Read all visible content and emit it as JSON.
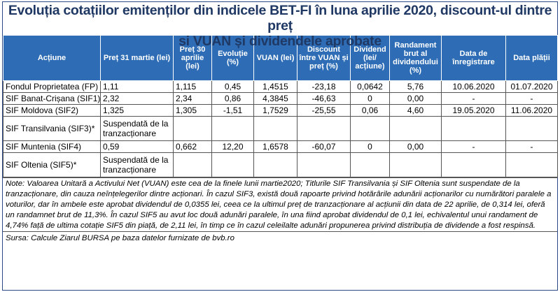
{
  "title_line1": "Evoluția cotațiilor emitenților din indicele BET-FI în luna aprilie 2020,  discount-ul dintre preț",
  "title_line2": "și VUAN și dividendele aprobate",
  "headers": [
    "Acțiune",
    "Preț 31 martie (lei)",
    "Preț 30 aprilie (lei)",
    "Evoluție (%)",
    "VUAN (lei)",
    "Discount între VUAN și preț (%)",
    "Dividend (lei/ acțiune)",
    "Randament brut al dividendului (%)",
    "Data de înregistrare",
    "Data plății"
  ],
  "rows": [
    [
      "Fondul Proprietatea (FP)",
      "1,11",
      "1,115",
      "0,45",
      "1,4515",
      "-23,18",
      "0,0642",
      "5,76",
      "10.06.2020",
      "01.07.2020"
    ],
    [
      "SIF Banat-Crișana (SIF1)",
      "2,32",
      "2,34",
      "0,86",
      "4,3845",
      "-46,63",
      "0",
      "0,00",
      "-",
      "-"
    ],
    [
      "SIF Moldova (SIF2)",
      "1,325",
      "1,305",
      "-1,51",
      "1,7529",
      "-25,55",
      "0,06",
      "4,60",
      "19.05.2020",
      "11.06.2020"
    ],
    [
      "SIF Transilvania (SIF3)*",
      "Suspendată de la tranzacționare",
      "",
      "",
      "",
      "",
      "",
      "",
      "",
      ""
    ],
    [
      "SIF Muntenia (SIF4)",
      "0,59",
      "0,662",
      "12,20",
      "1,6578",
      "-60,07",
      "0",
      "0,00",
      "-",
      "-"
    ],
    [
      "SIF Oltenia (SIF5)*",
      "Suspendată de la tranzacționare",
      "",
      "",
      "",
      "",
      "",
      "",
      "",
      ""
    ]
  ],
  "note": "Note: Valoarea Unitară a Activului Net (VUAN) este cea de la finele lunii martie2020; Titlurile SIF Transilvania și SIF Oltenia sunt suspendate de la tranzacționare, din cauza neînțelegerilor dintre acționari. În cazul SIF3, există două rapoarte privind hotărârile adunării acționarilor cu numărători paralele a voturilor, dar în ambele este aprobat dividendul de 0,0355 lei, ceea ce la ultimul preț de tranzacționare al acțiunii din data de 22 aprilie, de 0,314 lei, oferă un randamnet brut de 11,3%. În cazul SIF5 au avut loc două adunări paralele, în una fiind aprobat dividendul de 0,1 lei, echivalentul unui randament de 4,74% față de ultima cotație SIF5 din piață, de 2,11 lei, în timp ce în cazul celeilalte adunări propunerea privind distribuția de dividende a fost respinsă.",
  "source": "Sursa: Calcule Ziarul BURSA pe baza datelor furnizate de bvb.ro",
  "colors": {
    "header_bg": "#2e6db5",
    "title": "#1f3864",
    "frame": "#2b4a86"
  }
}
